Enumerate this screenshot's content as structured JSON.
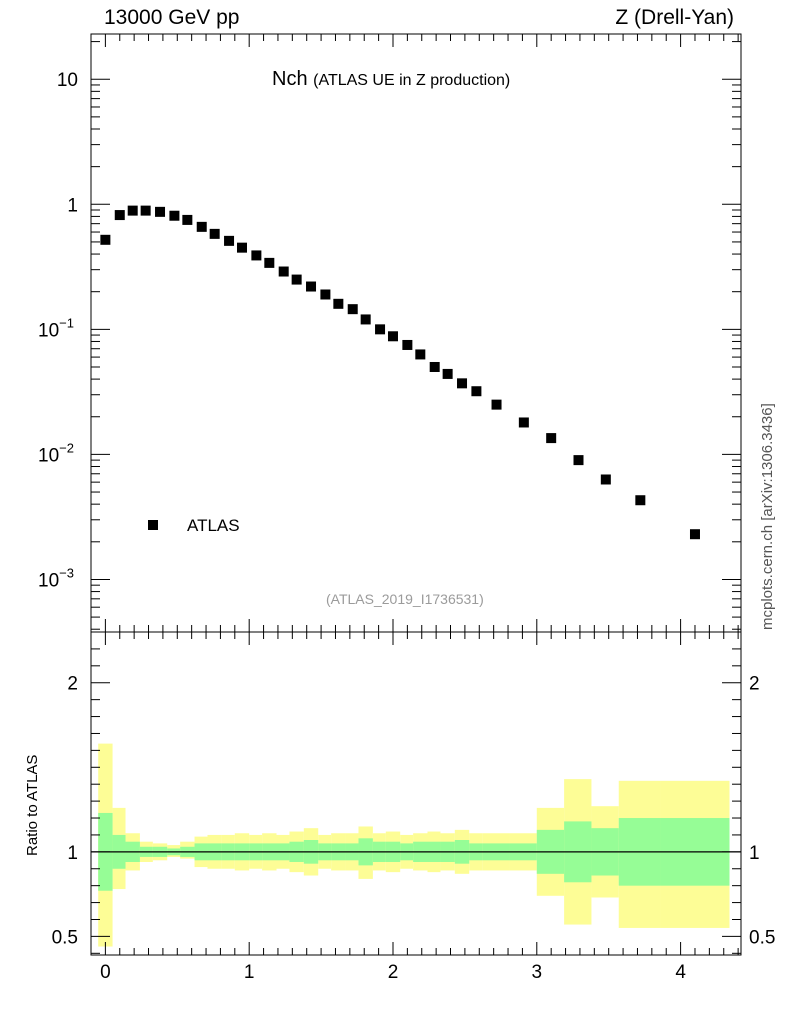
{
  "header": {
    "left": "13000 GeV pp",
    "right": "Z (Drell-Yan)"
  },
  "side_credit": "mcplots.cern.ch [arXiv:1306.3436]",
  "colors": {
    "band_outer": "#fdfd96",
    "band_inner": "#96fd96",
    "marker": "#000000",
    "axis": "#000000",
    "footer": "#9b9b9b"
  },
  "chart_data": [
    {
      "type": "scatter",
      "panel": "main",
      "title": "Nch",
      "subtitle": "(ATLAS UE in Z production)",
      "footer": "(ATLAS_2019_I1736531)",
      "xlabel": "",
      "ylabel": "",
      "yscale": "log",
      "xlim": [
        -0.1,
        4.42
      ],
      "ylim": [
        0.00038,
        23
      ],
      "legend": {
        "position": "bottom-left",
        "entries": [
          "ATLAS"
        ]
      },
      "ytick_labels": [
        {
          "value": 10,
          "label": "10"
        },
        {
          "value": 1,
          "label": "1"
        },
        {
          "value": 0.1,
          "label": "10",
          "exp": "−1"
        },
        {
          "value": 0.01,
          "label": "10",
          "exp": "−2"
        },
        {
          "value": 0.001,
          "label": "10",
          "exp": "−3"
        }
      ],
      "series": [
        {
          "name": "ATLAS",
          "marker": "square",
          "x": [
            0.0,
            0.1,
            0.19,
            0.28,
            0.38,
            0.48,
            0.57,
            0.67,
            0.76,
            0.86,
            0.95,
            1.05,
            1.14,
            1.24,
            1.33,
            1.43,
            1.53,
            1.62,
            1.72,
            1.81,
            1.91,
            2.0,
            2.1,
            2.19,
            2.29,
            2.38,
            2.48,
            2.58,
            2.72,
            2.91,
            3.1,
            3.29,
            3.48,
            3.72,
            4.1
          ],
          "y": [
            0.52,
            0.82,
            0.89,
            0.89,
            0.87,
            0.81,
            0.75,
            0.66,
            0.58,
            0.51,
            0.45,
            0.39,
            0.34,
            0.29,
            0.25,
            0.22,
            0.19,
            0.16,
            0.145,
            0.12,
            0.1,
            0.088,
            0.075,
            0.063,
            0.05,
            0.044,
            0.037,
            0.032,
            0.025,
            0.018,
            0.0135,
            0.009,
            0.0063,
            0.0043,
            0.0023
          ]
        }
      ]
    },
    {
      "type": "area",
      "panel": "ratio",
      "xlabel": "",
      "ylabel": "Ratio to ATLAS",
      "xlim": [
        -0.1,
        4.42
      ],
      "ylim": [
        0.39,
        2.3
      ],
      "xticks": [
        0,
        1,
        2,
        3,
        4
      ],
      "xtick_labels": [
        "0",
        "1",
        "2",
        "3",
        "4"
      ],
      "yticks": [
        0.5,
        1,
        2
      ],
      "ytick_labels": [
        "0.5",
        "1",
        "2"
      ],
      "reference_line": 1,
      "bands": {
        "edges": [
          -0.05,
          0.05,
          0.14,
          0.24,
          0.33,
          0.43,
          0.52,
          0.62,
          0.71,
          0.81,
          0.9,
          1.0,
          1.09,
          1.19,
          1.28,
          1.38,
          1.48,
          1.57,
          1.67,
          1.76,
          1.86,
          1.95,
          2.05,
          2.14,
          2.24,
          2.33,
          2.43,
          2.53,
          2.62,
          2.81,
          3.0,
          3.19,
          3.38,
          3.57,
          3.86,
          4.34
        ],
        "outer_low": [
          0.44,
          0.78,
          0.89,
          0.94,
          0.95,
          0.97,
          0.96,
          0.91,
          0.9,
          0.9,
          0.89,
          0.9,
          0.89,
          0.9,
          0.88,
          0.86,
          0.9,
          0.89,
          0.89,
          0.84,
          0.89,
          0.88,
          0.9,
          0.89,
          0.88,
          0.89,
          0.87,
          0.89,
          0.89,
          0.89,
          0.74,
          0.57,
          0.73,
          0.55,
          0.55
        ],
        "outer_high": [
          1.64,
          1.26,
          1.11,
          1.06,
          1.05,
          1.04,
          1.06,
          1.09,
          1.1,
          1.1,
          1.11,
          1.1,
          1.11,
          1.1,
          1.12,
          1.14,
          1.1,
          1.11,
          1.11,
          1.15,
          1.11,
          1.12,
          1.1,
          1.11,
          1.12,
          1.11,
          1.13,
          1.11,
          1.11,
          1.11,
          1.26,
          1.43,
          1.27,
          1.42,
          1.42
        ],
        "inner_low": [
          0.77,
          0.9,
          0.94,
          0.97,
          0.97,
          0.98,
          0.97,
          0.95,
          0.95,
          0.95,
          0.95,
          0.95,
          0.95,
          0.95,
          0.94,
          0.93,
          0.95,
          0.95,
          0.95,
          0.92,
          0.94,
          0.94,
          0.95,
          0.94,
          0.94,
          0.94,
          0.93,
          0.95,
          0.95,
          0.95,
          0.87,
          0.82,
          0.86,
          0.8,
          0.8
        ],
        "inner_high": [
          1.23,
          1.1,
          1.06,
          1.03,
          1.03,
          1.02,
          1.03,
          1.05,
          1.05,
          1.05,
          1.05,
          1.05,
          1.05,
          1.05,
          1.06,
          1.07,
          1.05,
          1.05,
          1.05,
          1.08,
          1.06,
          1.06,
          1.05,
          1.06,
          1.06,
          1.06,
          1.07,
          1.05,
          1.05,
          1.05,
          1.13,
          1.18,
          1.14,
          1.2,
          1.2
        ]
      }
    }
  ]
}
